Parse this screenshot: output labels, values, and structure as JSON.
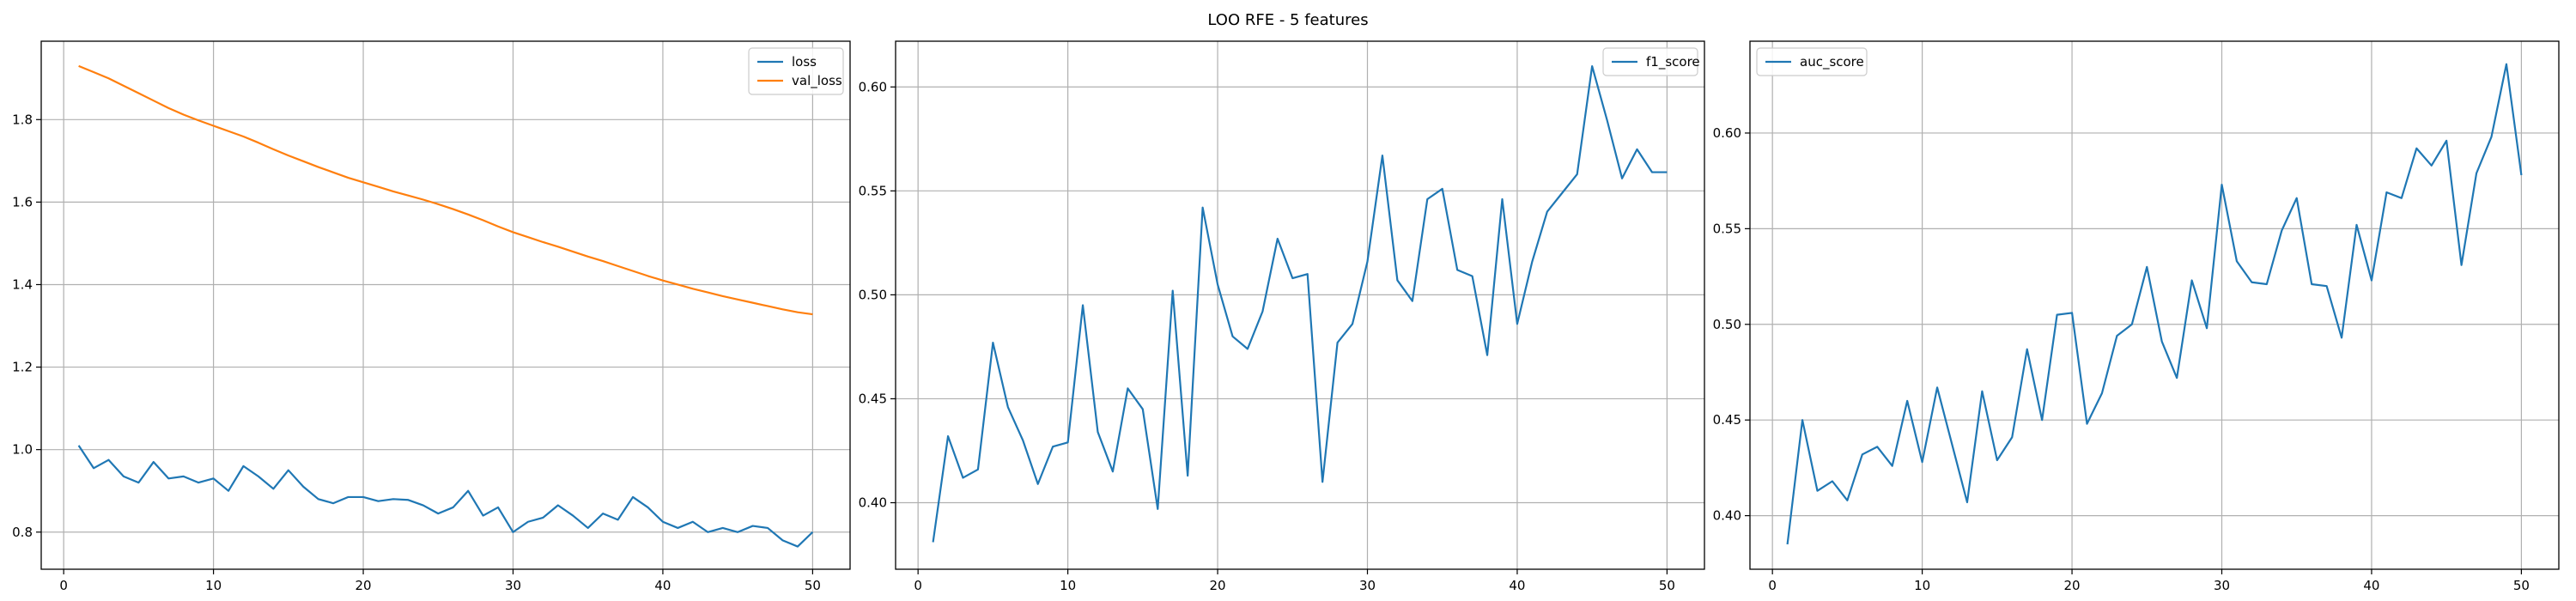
{
  "figure": {
    "title": "LOO RFE - 5 features"
  },
  "chart_data": [
    {
      "type": "line",
      "title": "",
      "xlabel": "",
      "ylabel": "",
      "xlim": [
        -1.5,
        52.5
      ],
      "ylim": [
        0.71,
        1.99
      ],
      "xticks": [
        0,
        10,
        20,
        30,
        40,
        50
      ],
      "yticks": [
        0.8,
        1.0,
        1.2,
        1.4,
        1.6,
        1.8
      ],
      "ytick_labels": [
        "0.8",
        "1.0",
        "1.2",
        "1.4",
        "1.6",
        "1.8"
      ],
      "grid": true,
      "legend": "top-right",
      "series": [
        {
          "name": "loss",
          "color": "#1f77b4",
          "x": [
            1,
            2,
            3,
            4,
            5,
            6,
            7,
            8,
            9,
            10,
            11,
            12,
            13,
            14,
            15,
            16,
            17,
            18,
            19,
            20,
            21,
            22,
            23,
            24,
            25,
            26,
            27,
            28,
            29,
            30,
            31,
            32,
            33,
            34,
            35,
            36,
            37,
            38,
            39,
            40,
            41,
            42,
            43,
            44,
            45,
            46,
            47,
            48,
            49,
            50
          ],
          "y": [
            1.01,
            0.955,
            0.975,
            0.935,
            0.92,
            0.97,
            0.93,
            0.935,
            0.92,
            0.93,
            0.9,
            0.96,
            0.935,
            0.905,
            0.95,
            0.91,
            0.88,
            0.87,
            0.885,
            0.885,
            0.875,
            0.88,
            0.878,
            0.865,
            0.845,
            0.86,
            0.9,
            0.84,
            0.86,
            0.8,
            0.825,
            0.835,
            0.865,
            0.84,
            0.81,
            0.845,
            0.83,
            0.885,
            0.86,
            0.825,
            0.81,
            0.825,
            0.8,
            0.81,
            0.8,
            0.815,
            0.81,
            0.78,
            0.765,
            0.8
          ]
        },
        {
          "name": "val_loss",
          "color": "#ff7f0e",
          "x": [
            1,
            2,
            3,
            4,
            5,
            6,
            7,
            8,
            9,
            10,
            11,
            12,
            13,
            14,
            15,
            16,
            17,
            18,
            19,
            20,
            21,
            22,
            23,
            24,
            25,
            26,
            27,
            28,
            29,
            30,
            31,
            32,
            33,
            34,
            35,
            36,
            37,
            38,
            39,
            40,
            41,
            42,
            43,
            44,
            45,
            46,
            47,
            48,
            49,
            50
          ],
          "y": [
            1.93,
            1.915,
            1.9,
            1.882,
            1.864,
            1.846,
            1.828,
            1.812,
            1.798,
            1.785,
            1.772,
            1.759,
            1.744,
            1.728,
            1.713,
            1.699,
            1.685,
            1.672,
            1.659,
            1.648,
            1.637,
            1.626,
            1.616,
            1.606,
            1.595,
            1.583,
            1.57,
            1.556,
            1.541,
            1.527,
            1.515,
            1.503,
            1.492,
            1.48,
            1.468,
            1.457,
            1.445,
            1.433,
            1.421,
            1.41,
            1.4,
            1.39,
            1.381,
            1.372,
            1.364,
            1.356,
            1.348,
            1.34,
            1.333,
            1.328
          ]
        }
      ]
    },
    {
      "type": "line",
      "title": "",
      "xlabel": "",
      "ylabel": "",
      "xlim": [
        -1.5,
        52.5
      ],
      "ylim": [
        0.368,
        0.622
      ],
      "xticks": [
        0,
        10,
        20,
        30,
        40,
        50
      ],
      "yticks": [
        0.4,
        0.45,
        0.5,
        0.55,
        0.6
      ],
      "ytick_labels": [
        "0.40",
        "0.45",
        "0.50",
        "0.55",
        "0.60"
      ],
      "grid": true,
      "legend": "top-right",
      "series": [
        {
          "name": "f1_score",
          "color": "#1f77b4",
          "x": [
            1,
            2,
            3,
            4,
            5,
            6,
            7,
            8,
            9,
            10,
            11,
            12,
            13,
            14,
            15,
            16,
            17,
            18,
            19,
            20,
            21,
            22,
            23,
            24,
            25,
            26,
            27,
            28,
            29,
            30,
            31,
            32,
            33,
            34,
            35,
            36,
            37,
            38,
            39,
            40,
            41,
            42,
            43,
            44,
            45,
            46,
            47,
            48,
            49,
            50
          ],
          "y": [
            0.381,
            0.432,
            0.412,
            0.416,
            0.477,
            0.446,
            0.43,
            0.409,
            0.427,
            0.429,
            0.495,
            0.434,
            0.415,
            0.455,
            0.445,
            0.397,
            0.502,
            0.413,
            0.542,
            0.505,
            0.48,
            0.474,
            0.492,
            0.527,
            0.508,
            0.51,
            0.41,
            0.477,
            0.486,
            0.516,
            0.567,
            0.507,
            0.497,
            0.546,
            0.551,
            0.512,
            0.509,
            0.471,
            0.546,
            0.486,
            0.516,
            0.54,
            0.549,
            0.558,
            0.61,
            0.584,
            0.556,
            0.57,
            0.559,
            0.559
          ]
        }
      ]
    },
    {
      "type": "line",
      "title": "",
      "xlabel": "",
      "ylabel": "",
      "xlim": [
        -1.5,
        52.5
      ],
      "ylim": [
        0.372,
        0.648
      ],
      "xticks": [
        0,
        10,
        20,
        30,
        40,
        50
      ],
      "yticks": [
        0.4,
        0.45,
        0.5,
        0.55,
        0.6
      ],
      "ytick_labels": [
        "0.40",
        "0.45",
        "0.50",
        "0.55",
        "0.60"
      ],
      "grid": true,
      "legend": "top-left",
      "series": [
        {
          "name": "auc_score",
          "color": "#1f77b4",
          "x": [
            1,
            2,
            3,
            4,
            5,
            6,
            7,
            8,
            9,
            10,
            11,
            12,
            13,
            14,
            15,
            16,
            17,
            18,
            19,
            20,
            21,
            22,
            23,
            24,
            25,
            26,
            27,
            28,
            29,
            30,
            31,
            32,
            33,
            34,
            35,
            36,
            37,
            38,
            39,
            40,
            41,
            42,
            43,
            44,
            45,
            46,
            47,
            48,
            49,
            50
          ],
          "y": [
            0.385,
            0.45,
            0.413,
            0.418,
            0.408,
            0.432,
            0.436,
            0.426,
            0.46,
            0.428,
            0.467,
            0.437,
            0.407,
            0.465,
            0.429,
            0.441,
            0.487,
            0.45,
            0.505,
            0.506,
            0.448,
            0.464,
            0.494,
            0.5,
            0.53,
            0.491,
            0.472,
            0.523,
            0.498,
            0.573,
            0.533,
            0.522,
            0.521,
            0.549,
            0.566,
            0.521,
            0.52,
            0.493,
            0.552,
            0.523,
            0.569,
            0.566,
            0.592,
            0.583,
            0.596,
            0.531,
            0.579,
            0.598,
            0.636,
            0.578
          ]
        }
      ]
    }
  ]
}
